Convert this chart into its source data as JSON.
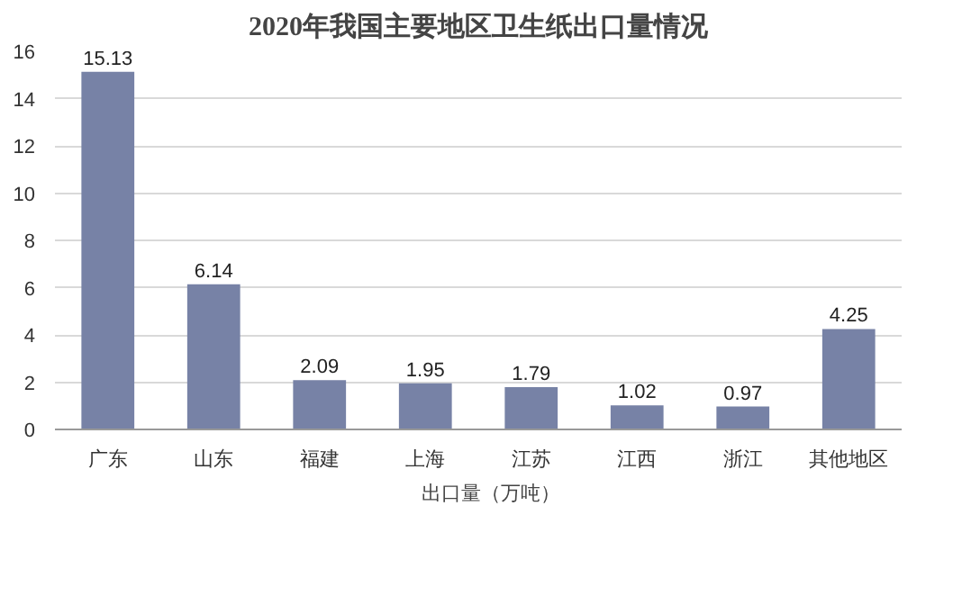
{
  "chart_data": {
    "type": "bar",
    "title": "2020年我国主要地区卫生纸出口量情况",
    "categories": [
      "广东",
      "山东",
      "福建",
      "上海",
      "江苏",
      "江西",
      "浙江",
      "其他地区"
    ],
    "series": [
      {
        "name": "出口量（万吨）",
        "color": "#7782a6",
        "values": [
          15.13,
          6.14,
          2.09,
          1.95,
          1.79,
          1.02,
          0.97,
          4.25
        ]
      }
    ],
    "ylim": [
      0,
      16
    ],
    "yticks": [
      0,
      2,
      4,
      6,
      8,
      10,
      12,
      14,
      16
    ],
    "grid": "y",
    "legend": "bottom",
    "data_labels": true
  }
}
